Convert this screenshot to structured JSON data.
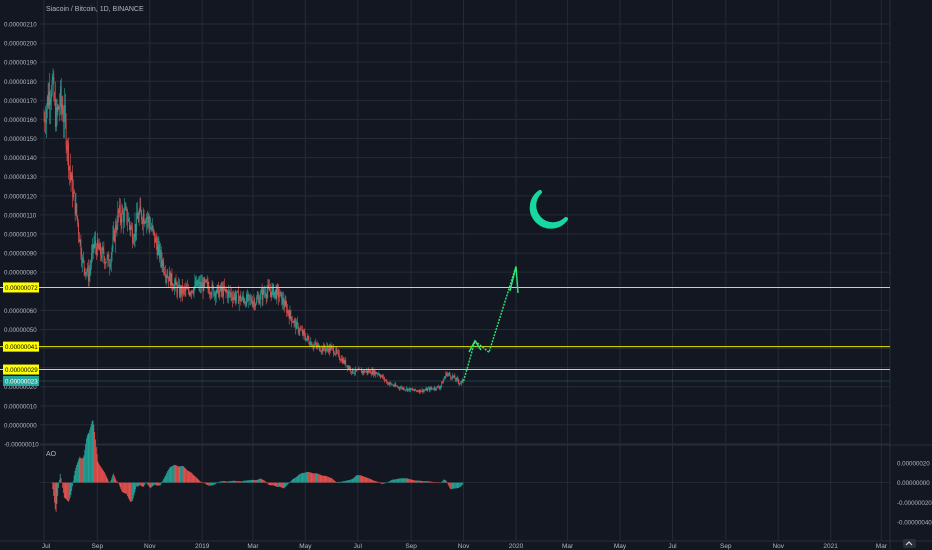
{
  "header": {
    "title": "Siacoin / Bitcoin, 1D, BINANCE"
  },
  "indicator": {
    "label": "AO"
  },
  "colors": {
    "background": "#131722",
    "grid": "#262b38",
    "text": "#b2b5be",
    "up": "#26a69a",
    "down": "#ef5350",
    "level_line": "#e6e600",
    "level_tag_bg": "#ffff00",
    "current_tag_bg": "#26a69a",
    "projection": "#2ee87a",
    "moon": "#17d9a0",
    "ao_up": "#26a69a",
    "ao_down": "#ef5350"
  },
  "chart_data": [
    {
      "type": "line",
      "title": "Siacoin / Bitcoin, 1D, BINANCE",
      "xlabel": "",
      "ylabel": "",
      "x_ticks": [
        "Jul",
        "Sep",
        "Nov",
        "2019",
        "Mar",
        "May",
        "Jul",
        "Sep",
        "Nov",
        "2020",
        "Mar",
        "May",
        "Jul",
        "Sep",
        "Nov",
        "2021",
        "Mar"
      ],
      "y_ticks": [
        "0.00000210",
        "0.00000200",
        "0.00000190",
        "0.00000180",
        "0.00000170",
        "0.00000160",
        "0.00000150",
        "0.00000140",
        "0.00000130",
        "0.00000120",
        "0.00000110",
        "0.00000100",
        "0.00000090",
        "0.00000080",
        "0.00000060",
        "0.00000050",
        "0.00000040",
        "0.00000030",
        "0.00000020",
        "0.00000010",
        "0.00000000",
        "-0.00000010"
      ],
      "ylim": [
        -1e-07,
        2.1e-06
      ],
      "grid": true,
      "series": [
        {
          "values_x": [
            "2018-07-01",
            "2018-07-05",
            "2018-07-10",
            "2018-07-15",
            "2018-07-20",
            "2018-07-25",
            "2018-08-01",
            "2018-08-08",
            "2018-08-15",
            "2018-08-22",
            "2018-08-28",
            "2018-09-05",
            "2018-09-15",
            "2018-09-25",
            "2018-10-05",
            "2018-10-12",
            "2018-10-20",
            "2018-10-28",
            "2018-11-05",
            "2018-11-12",
            "2018-11-20",
            "2018-11-27",
            "2018-12-05",
            "2018-12-15",
            "2018-12-25",
            "2019-01-05",
            "2019-01-15",
            "2019-01-25",
            "2019-02-05",
            "2019-02-15",
            "2019-02-25",
            "2019-03-05",
            "2019-03-15",
            "2019-03-25",
            "2019-04-01",
            "2019-04-10",
            "2019-04-20",
            "2019-05-01",
            "2019-05-10",
            "2019-05-20",
            "2019-06-01",
            "2019-06-15",
            "2019-06-25",
            "2019-07-05",
            "2019-07-15",
            "2019-07-25",
            "2019-08-05",
            "2019-08-15",
            "2019-08-25",
            "2019-09-05",
            "2019-09-15",
            "2019-09-25",
            "2019-10-05",
            "2019-10-12",
            "2019-10-20",
            "2019-10-28",
            "2019-11-01"
          ],
          "values": [
            1.6e-06,
            1.7e-06,
            1.8e-06,
            1.6e-06,
            1.7e-06,
            1.6e-06,
            1.3e-06,
            1.1e-06,
            8.5e-07,
            7.8e-07,
            9.5e-07,
            9e-07,
            8.5e-07,
            1.1e-06,
            1.1e-06,
            1e-06,
            1.1e-06,
            1.1e-06,
            1e-06,
            9e-07,
            8e-07,
            7.5e-07,
            7e-07,
            7e-07,
            7.3e-07,
            7.3e-07,
            7e-07,
            7e-07,
            6.8e-07,
            6.6e-07,
            6.5e-07,
            6.5e-07,
            7e-07,
            7e-07,
            6.8e-07,
            6e-07,
            5.2e-07,
            4.6e-07,
            4.2e-07,
            4e-07,
            4e-07,
            3.3e-07,
            2.8e-07,
            2.8e-07,
            2.8e-07,
            2.7e-07,
            2.2e-07,
            2e-07,
            1.9e-07,
            1.8e-07,
            1.8e-07,
            1.9e-07,
            2e-07,
            2.7e-07,
            2.5e-07,
            2.2e-07,
            2.3e-07
          ]
        }
      ],
      "levels": [
        {
          "label": "0.00000072",
          "value": 7.2e-07
        },
        {
          "label": "0.00000041",
          "value": 4.1e-07
        },
        {
          "label": "0.00000029",
          "value": 2.9e-07
        },
        {
          "label": "0.00000023",
          "value": 2.3e-07
        }
      ],
      "annotations": [
        "moon-icon",
        "projection-arrow"
      ]
    },
    {
      "type": "bar",
      "title": "AO",
      "y_ticks": [
        "0.00000020",
        "0.00000000",
        "-0.00000020",
        "-0.00000040"
      ],
      "ylim": [
        -4.5e-07,
        3e-07
      ],
      "grid": true
    }
  ]
}
